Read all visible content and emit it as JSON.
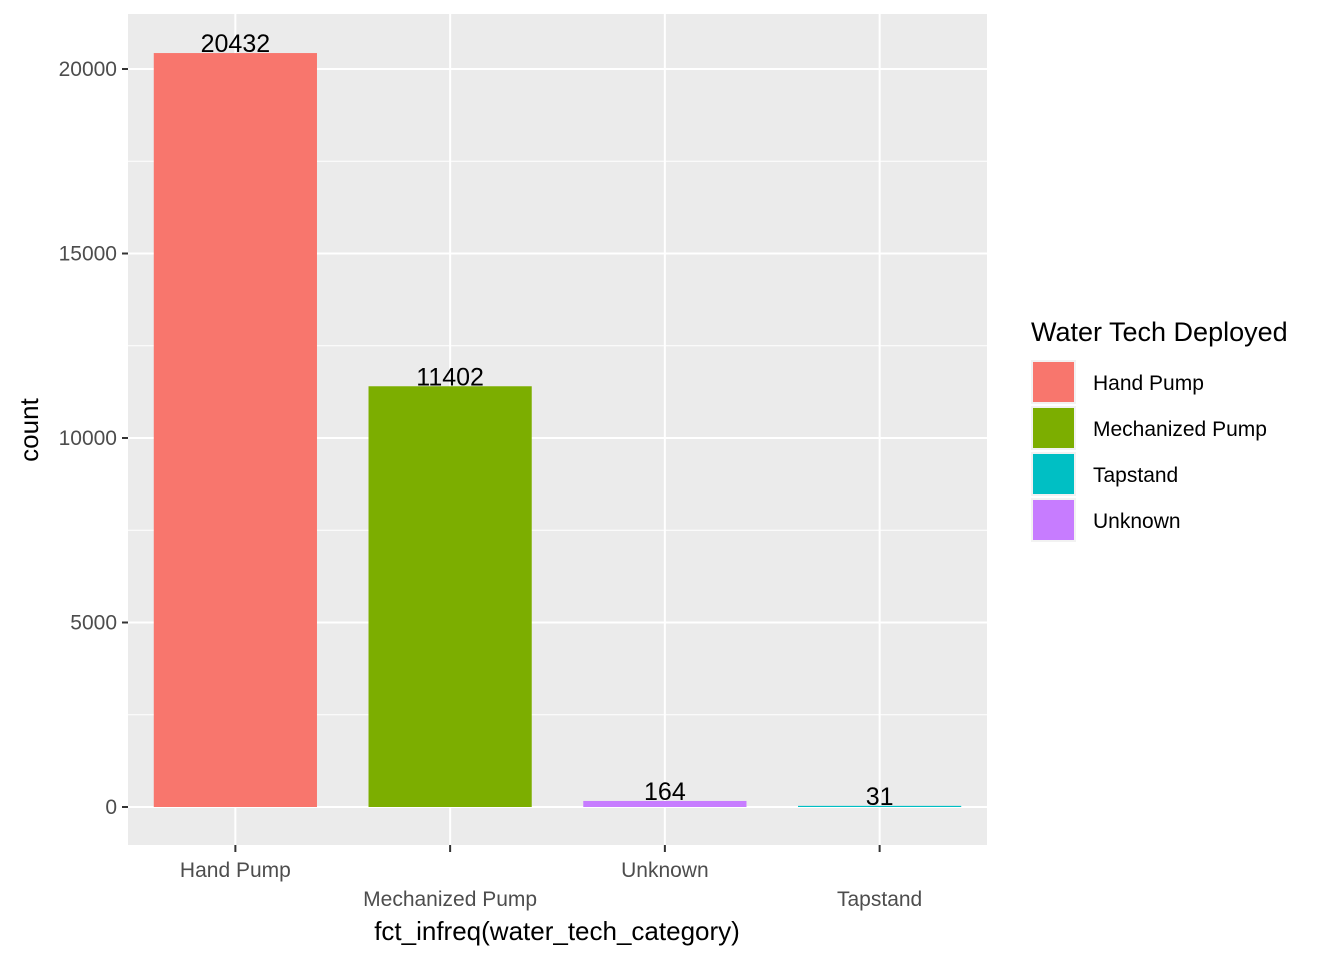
{
  "chart_data": {
    "type": "bar",
    "categories": [
      "Hand Pump",
      "Mechanized Pump",
      "Unknown",
      "Tapstand"
    ],
    "values": [
      20432,
      11402,
      164,
      31
    ],
    "bar_colors": [
      "#F8766D",
      "#7CAE00",
      "#C77CFF",
      "#00BFC4"
    ],
    "data_labels": [
      "20432",
      "11402",
      "164",
      "31"
    ],
    "xlabel": "fct_infreq(water_tech_category)",
    "ylabel": "count",
    "ylim": [
      -1000,
      21500
    ],
    "y_ticks": [
      0,
      5000,
      10000,
      15000,
      20000
    ],
    "y_tick_labels": [
      "0",
      "5000",
      "10000",
      "15000",
      "20000"
    ],
    "grid": true,
    "panel_background": "#EBEBEB",
    "legend": {
      "title": "Water Tech Deployed",
      "placement": "right",
      "entries": [
        {
          "label": "Hand Pump",
          "color": "#F8766D"
        },
        {
          "label": "Mechanized Pump",
          "color": "#7CAE00"
        },
        {
          "label": "Tapstand",
          "color": "#00BFC4"
        },
        {
          "label": "Unknown",
          "color": "#C77CFF"
        }
      ]
    }
  }
}
